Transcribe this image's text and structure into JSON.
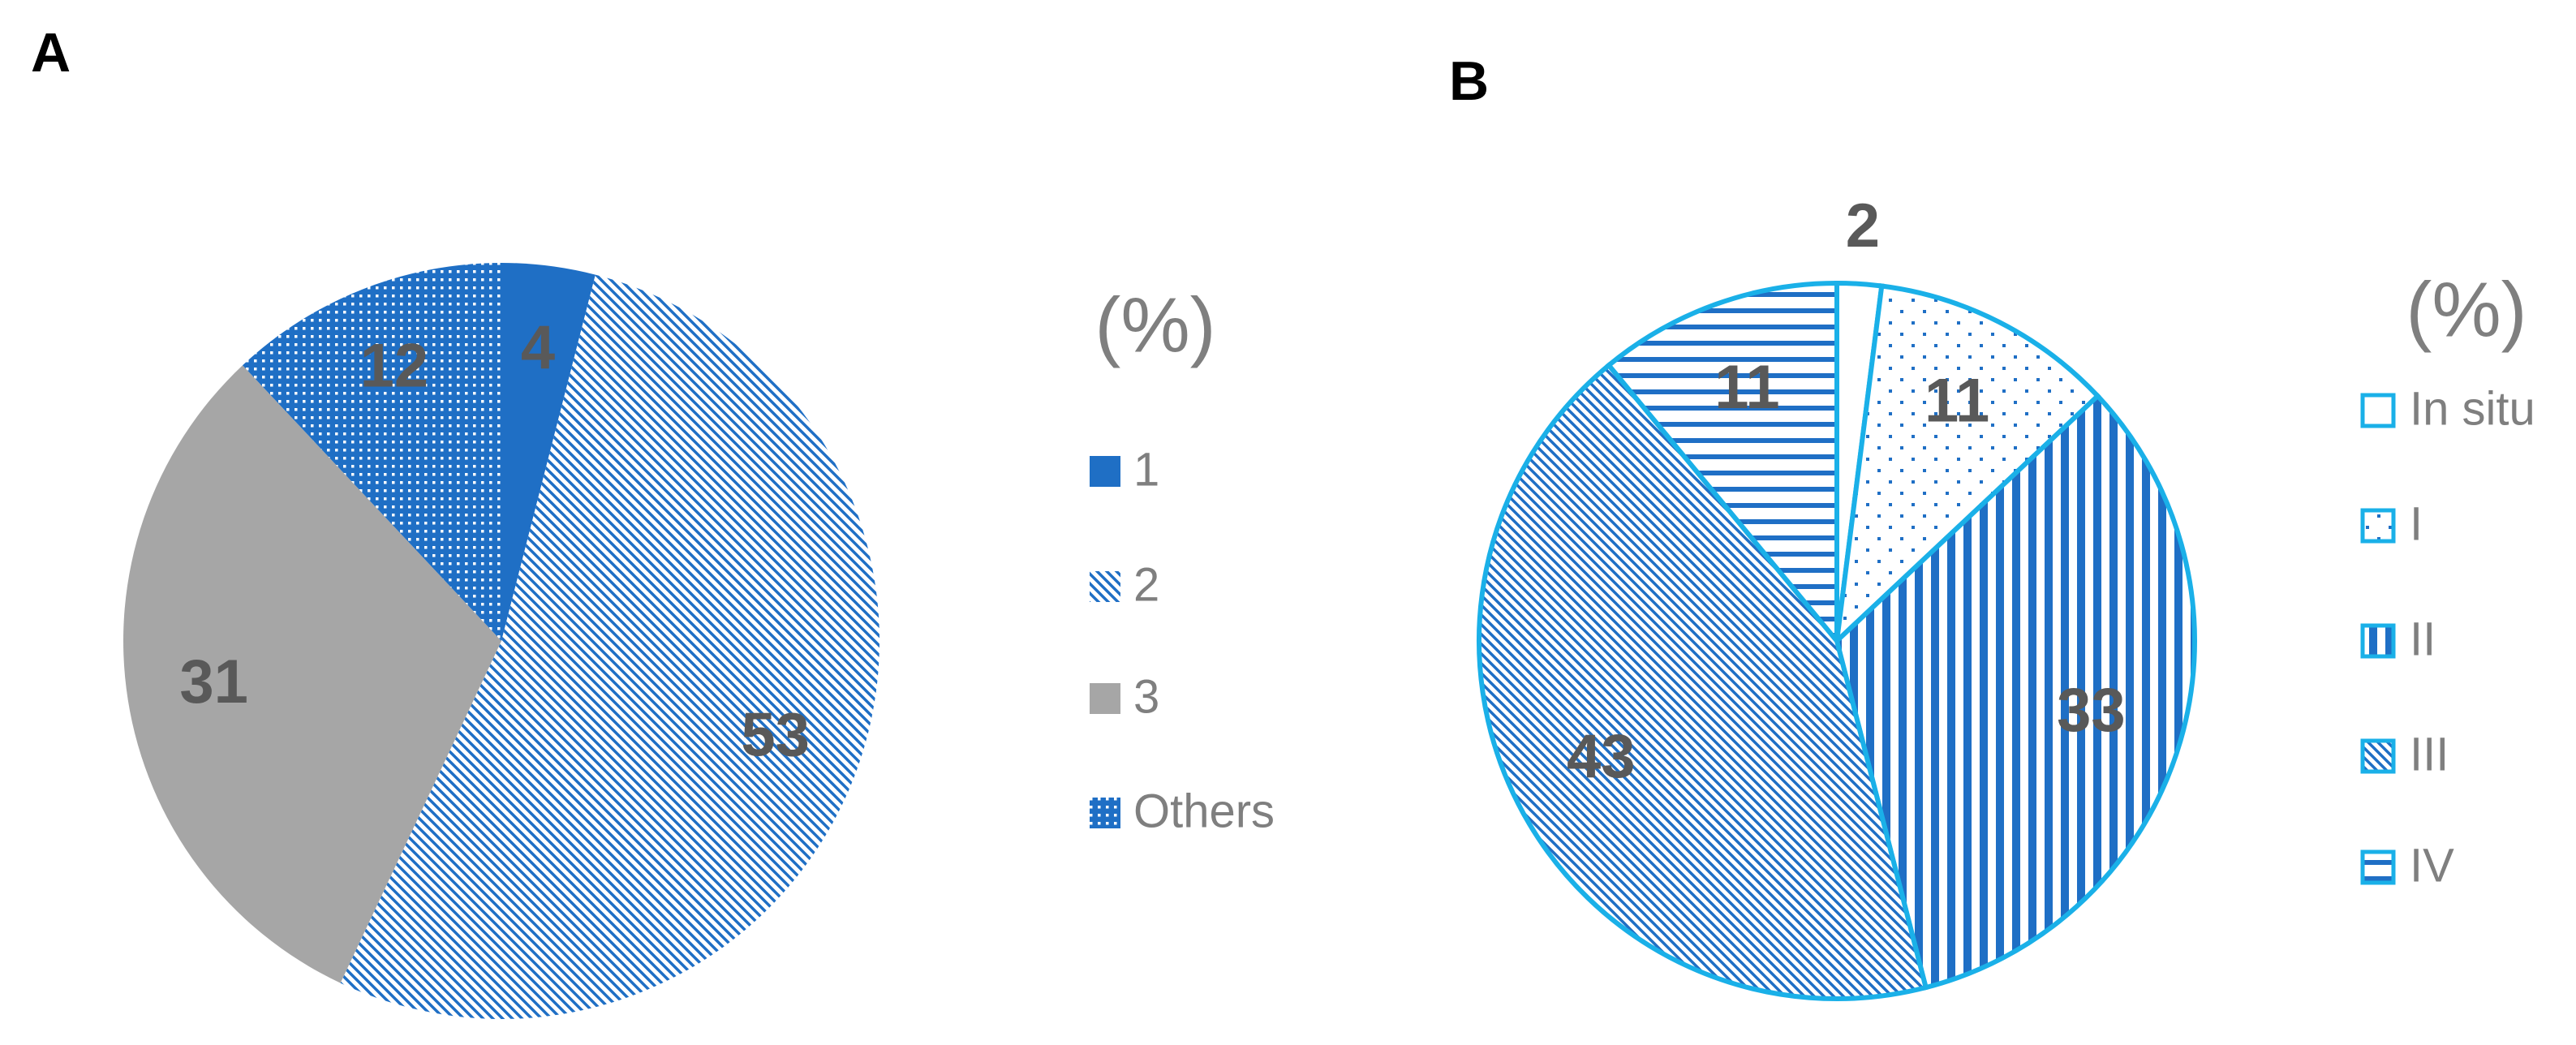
{
  "chart_data": [
    {
      "type": "pie",
      "title": "A",
      "legend_title": "(%)",
      "categories": [
        "1",
        "2",
        "3",
        "Others"
      ],
      "values": [
        4,
        53,
        31,
        12
      ],
      "colors": [
        "#1f6fc5",
        "#1f6fc5",
        "#a6a6a6",
        "#1f6fc5"
      ],
      "patterns": [
        "solid",
        "diagonal",
        "solid",
        "dense-dots"
      ]
    },
    {
      "type": "pie",
      "title": "B",
      "legend_title": "(%)",
      "categories": [
        "In situ",
        "I",
        "II",
        "III",
        "IV"
      ],
      "values": [
        2,
        11,
        33,
        43,
        11
      ],
      "colors": [
        "#1f6fc5",
        "#1f6fc5",
        "#1f6fc5",
        "#1f6fc5",
        "#1f6fc5"
      ],
      "edge_color": "#1ab0e8",
      "patterns": [
        "empty",
        "sparse-dots",
        "vertical",
        "diagonal",
        "horizontal"
      ]
    }
  ]
}
